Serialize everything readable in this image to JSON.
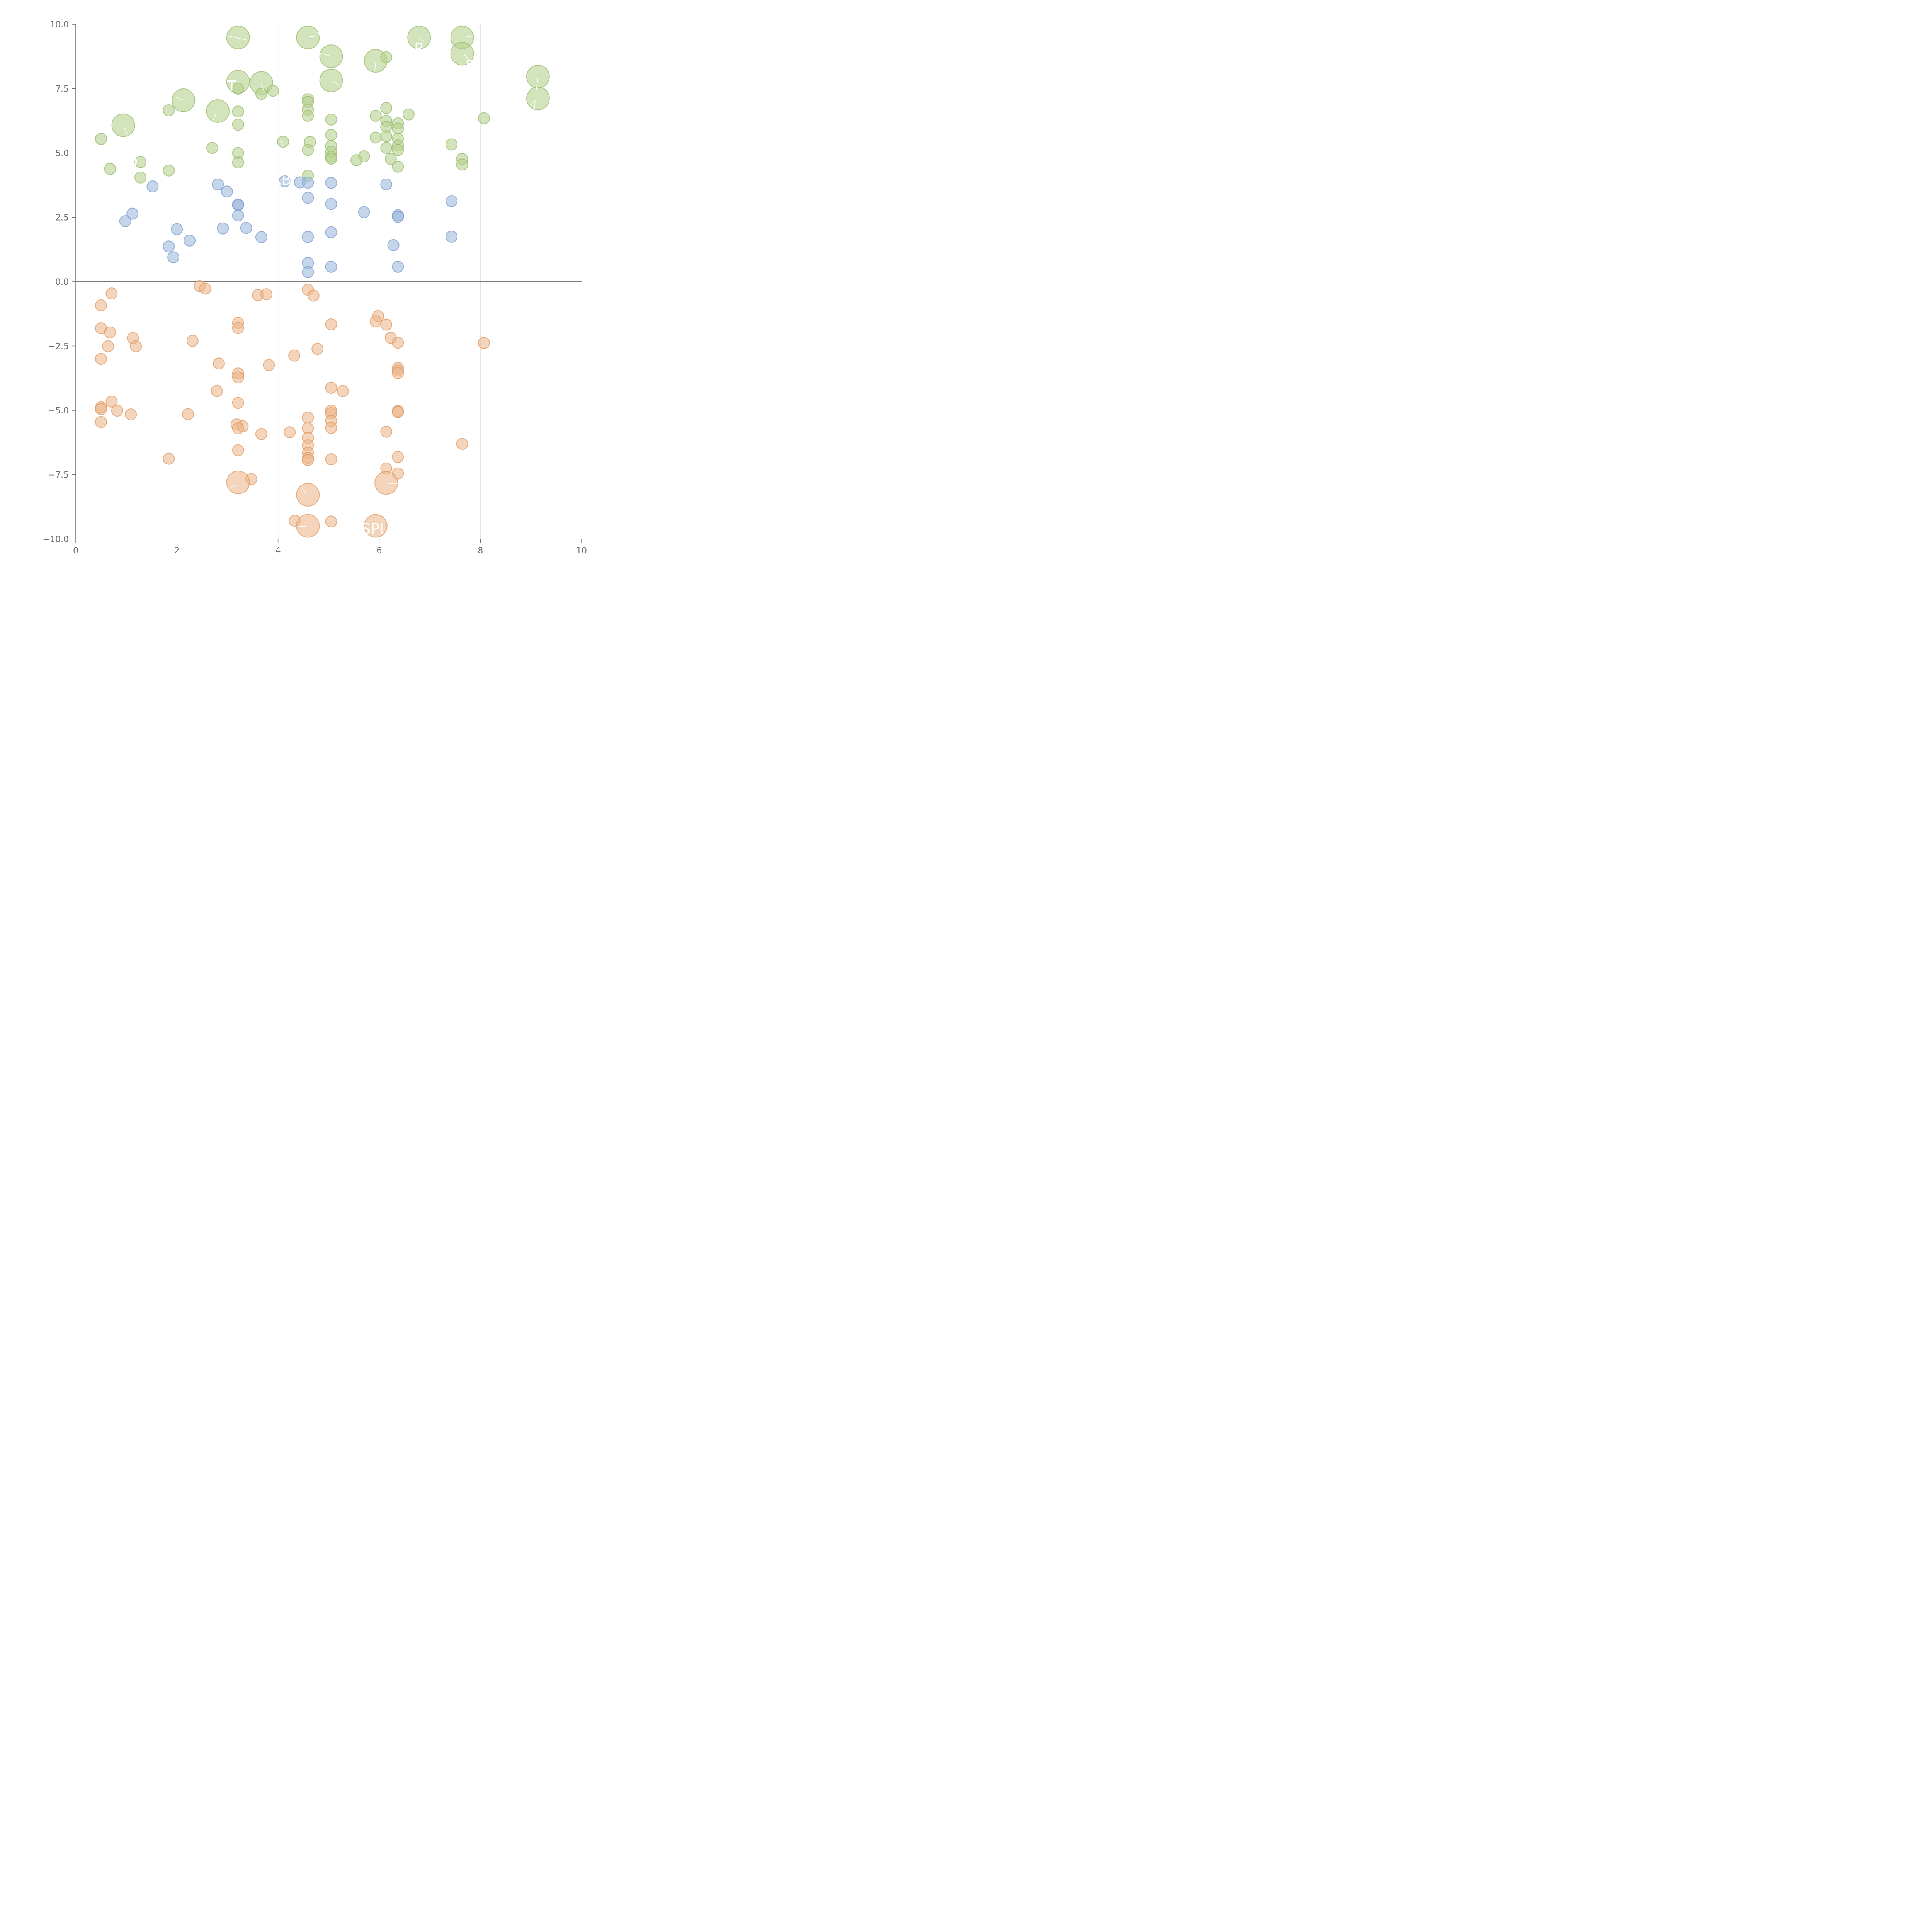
{
  "chart_data": {
    "type": "scatter",
    "title": "",
    "xlabel": "",
    "ylabel": "",
    "xlim": [
      0,
      10
    ],
    "ylim": [
      -10,
      10
    ],
    "x_ticks": [
      0,
      2,
      4,
      6,
      8,
      10
    ],
    "x_tick_labels": [
      "0",
      "2",
      "4",
      "6",
      "8",
      "10"
    ],
    "y_ticks": [
      10,
      7.5,
      5,
      2.5,
      0,
      -2.5,
      -5,
      -7.5,
      -10
    ],
    "y_tick_labels": [
      "10.0",
      "7.5",
      "5.0",
      "2.5",
      "0.0",
      "−2.5",
      "−5.0",
      "−7.5",
      "−10.0"
    ],
    "grid": "vertical",
    "zero_line": true,
    "legend": "none",
    "colors": {
      "green_fill": "#b5d08f",
      "green_stroke": "#95b96a",
      "blue_fill": "#9fb9dc",
      "blue_stroke": "#7a9acb",
      "orange_fill": "#ecb88c",
      "orange_stroke": "#dc9a64"
    },
    "series": [
      {
        "color": "green",
        "points": [
          [
            3.21,
            9.49,
            "L"
          ],
          [
            4.59,
            9.49,
            "L"
          ],
          [
            6.79,
            9.49,
            "L"
          ],
          [
            7.64,
            9.49,
            "L"
          ],
          [
            5.05,
            8.76,
            "L"
          ],
          [
            5.93,
            8.58,
            "L"
          ],
          [
            7.64,
            8.86,
            "L"
          ],
          [
            6.14,
            8.72,
            "S"
          ],
          [
            9.14,
            7.97,
            "L"
          ],
          [
            9.14,
            7.12,
            "L"
          ],
          [
            3.21,
            7.77,
            "L"
          ],
          [
            3.67,
            7.72,
            "L"
          ],
          [
            5.05,
            7.82,
            "L"
          ],
          [
            2.13,
            7.05,
            "L"
          ],
          [
            2.81,
            6.63,
            "L"
          ],
          [
            0.94,
            6.08,
            "L"
          ],
          [
            3.21,
            7.5,
            "S"
          ],
          [
            3.67,
            7.3,
            "S"
          ],
          [
            3.9,
            7.42,
            "S"
          ],
          [
            4.59,
            7.09,
            "S"
          ],
          [
            4.59,
            6.99,
            "S"
          ],
          [
            4.59,
            6.69,
            "S"
          ],
          [
            4.59,
            6.45,
            "S"
          ],
          [
            1.84,
            6.66,
            "S"
          ],
          [
            3.21,
            6.61,
            "S"
          ],
          [
            3.21,
            6.1,
            "S"
          ],
          [
            6.14,
            6.75,
            "S"
          ],
          [
            5.93,
            6.45,
            "S"
          ],
          [
            6.14,
            6.25,
            "S"
          ],
          [
            6.37,
            6.15,
            "S"
          ],
          [
            6.14,
            6.02,
            "S"
          ],
          [
            6.37,
            5.95,
            "S"
          ],
          [
            6.58,
            6.5,
            "S"
          ],
          [
            5.05,
            6.3,
            "S"
          ],
          [
            8.07,
            6.35,
            "S"
          ],
          [
            0.5,
            5.55,
            "S"
          ],
          [
            4.1,
            5.44,
            "S"
          ],
          [
            4.63,
            5.43,
            "S"
          ],
          [
            5.05,
            5.7,
            "S"
          ],
          [
            5.93,
            5.6,
            "S"
          ],
          [
            6.14,
            5.65,
            "S"
          ],
          [
            6.37,
            5.55,
            "S"
          ],
          [
            2.7,
            5.2,
            "S"
          ],
          [
            7.43,
            5.33,
            "S"
          ],
          [
            5.05,
            5.27,
            "S"
          ],
          [
            6.37,
            5.29,
            "S"
          ],
          [
            6.14,
            5.2,
            "S"
          ],
          [
            4.59,
            5.12,
            "S"
          ],
          [
            6.37,
            5.12,
            "S"
          ],
          [
            5.05,
            5.05,
            "S"
          ],
          [
            3.21,
            5.0,
            "S"
          ],
          [
            5.05,
            4.86,
            "S"
          ],
          [
            5.05,
            4.78,
            "S"
          ],
          [
            5.7,
            4.87,
            "S"
          ],
          [
            5.55,
            4.72,
            "S"
          ],
          [
            6.23,
            4.77,
            "S"
          ],
          [
            7.64,
            4.77,
            "S"
          ],
          [
            1.28,
            4.65,
            "S"
          ],
          [
            3.21,
            4.63,
            "S"
          ],
          [
            7.64,
            4.55,
            "S"
          ],
          [
            6.37,
            4.47,
            "S"
          ],
          [
            0.68,
            4.38,
            "S"
          ],
          [
            1.84,
            4.32,
            "S"
          ],
          [
            1.28,
            4.05,
            "S"
          ],
          [
            4.59,
            4.12,
            "S"
          ]
        ]
      },
      {
        "color": "blue",
        "points": [
          [
            1.52,
            3.7,
            "S"
          ],
          [
            2.81,
            3.78,
            "S"
          ],
          [
            2.99,
            3.5,
            "S"
          ],
          [
            4.13,
            3.9,
            "S"
          ],
          [
            4.43,
            3.86,
            "S"
          ],
          [
            4.59,
            3.85,
            "S"
          ],
          [
            5.05,
            3.84,
            "S"
          ],
          [
            6.14,
            3.78,
            "S"
          ],
          [
            4.59,
            3.26,
            "S"
          ],
          [
            7.43,
            3.13,
            "S"
          ],
          [
            3.21,
            3.0,
            "S"
          ],
          [
            3.21,
            2.97,
            "S"
          ],
          [
            5.05,
            3.02,
            "S"
          ],
          [
            1.12,
            2.64,
            "S"
          ],
          [
            0.98,
            2.35,
            "S"
          ],
          [
            3.21,
            2.57,
            "S"
          ],
          [
            5.7,
            2.7,
            "S"
          ],
          [
            6.37,
            2.58,
            "S"
          ],
          [
            6.37,
            2.52,
            "S"
          ],
          [
            2.0,
            2.04,
            "S"
          ],
          [
            2.91,
            2.07,
            "S"
          ],
          [
            3.37,
            2.09,
            "S"
          ],
          [
            2.25,
            1.6,
            "S"
          ],
          [
            3.67,
            1.73,
            "S"
          ],
          [
            4.59,
            1.74,
            "S"
          ],
          [
            5.05,
            1.92,
            "S"
          ],
          [
            7.43,
            1.75,
            "S"
          ],
          [
            1.84,
            1.37,
            "S"
          ],
          [
            6.28,
            1.42,
            "S"
          ],
          [
            1.93,
            0.95,
            "S"
          ],
          [
            4.59,
            0.73,
            "S"
          ],
          [
            5.05,
            0.58,
            "S"
          ],
          [
            6.37,
            0.58,
            "S"
          ],
          [
            4.59,
            0.37,
            "S"
          ]
        ]
      },
      {
        "color": "orange",
        "points": [
          [
            2.45,
            -0.17,
            "S"
          ],
          [
            2.56,
            -0.27,
            "S"
          ],
          [
            0.71,
            -0.46,
            "S"
          ],
          [
            3.6,
            -0.52,
            "S"
          ],
          [
            3.77,
            -0.49,
            "S"
          ],
          [
            4.59,
            -0.31,
            "S"
          ],
          [
            4.7,
            -0.54,
            "S"
          ],
          [
            0.5,
            -0.92,
            "S"
          ],
          [
            5.98,
            -1.34,
            "S"
          ],
          [
            5.93,
            -1.54,
            "S"
          ],
          [
            3.21,
            -1.6,
            "S"
          ],
          [
            3.21,
            -1.8,
            "S"
          ],
          [
            5.05,
            -1.66,
            "S"
          ],
          [
            6.14,
            -1.67,
            "S"
          ],
          [
            0.5,
            -1.81,
            "S"
          ],
          [
            0.68,
            -1.97,
            "S"
          ],
          [
            1.13,
            -2.19,
            "S"
          ],
          [
            6.23,
            -2.18,
            "S"
          ],
          [
            2.31,
            -2.3,
            "S"
          ],
          [
            6.37,
            -2.37,
            "S"
          ],
          [
            8.07,
            -2.38,
            "S"
          ],
          [
            0.64,
            -2.51,
            "S"
          ],
          [
            1.19,
            -2.51,
            "S"
          ],
          [
            4.78,
            -2.61,
            "S"
          ],
          [
            4.32,
            -2.87,
            "S"
          ],
          [
            0.5,
            -3.0,
            "S"
          ],
          [
            2.83,
            -3.18,
            "S"
          ],
          [
            3.82,
            -3.24,
            "S"
          ],
          [
            6.37,
            -3.35,
            "S"
          ],
          [
            6.37,
            -3.45,
            "S"
          ],
          [
            6.37,
            -3.55,
            "S"
          ],
          [
            3.21,
            -3.57,
            "S"
          ],
          [
            3.21,
            -3.72,
            "S"
          ],
          [
            5.05,
            -4.12,
            "S"
          ],
          [
            2.79,
            -4.25,
            "S"
          ],
          [
            5.28,
            -4.25,
            "S"
          ],
          [
            0.71,
            -4.66,
            "S"
          ],
          [
            3.21,
            -4.71,
            "S"
          ],
          [
            0.5,
            -4.88,
            "S"
          ],
          [
            0.5,
            -4.95,
            "S"
          ],
          [
            0.82,
            -5.01,
            "S"
          ],
          [
            5.05,
            -5.01,
            "S"
          ],
          [
            6.37,
            -5.02,
            "S"
          ],
          [
            6.37,
            -5.07,
            "S"
          ],
          [
            1.09,
            -5.16,
            "S"
          ],
          [
            2.22,
            -5.15,
            "S"
          ],
          [
            5.05,
            -5.11,
            "S"
          ],
          [
            4.59,
            -5.28,
            "S"
          ],
          [
            5.05,
            -5.41,
            "S"
          ],
          [
            0.5,
            -5.45,
            "S"
          ],
          [
            3.18,
            -5.55,
            "S"
          ],
          [
            3.3,
            -5.62,
            "S"
          ],
          [
            3.21,
            -5.7,
            "S"
          ],
          [
            4.59,
            -5.7,
            "S"
          ],
          [
            5.05,
            -5.68,
            "S"
          ],
          [
            4.23,
            -5.85,
            "S"
          ],
          [
            6.14,
            -5.83,
            "S"
          ],
          [
            3.67,
            -5.92,
            "S"
          ],
          [
            4.59,
            -6.07,
            "S"
          ],
          [
            4.59,
            -6.36,
            "S"
          ],
          [
            7.64,
            -6.3,
            "S"
          ],
          [
            3.21,
            -6.55,
            "S"
          ],
          [
            4.59,
            -6.65,
            "S"
          ],
          [
            4.59,
            -6.85,
            "S"
          ],
          [
            4.59,
            -6.93,
            "S"
          ],
          [
            6.37,
            -6.81,
            "S"
          ],
          [
            1.84,
            -6.88,
            "S"
          ],
          [
            5.05,
            -6.9,
            "S"
          ],
          [
            6.14,
            -7.26,
            "S"
          ],
          [
            6.37,
            -7.45,
            "S"
          ],
          [
            3.47,
            -7.67,
            "S"
          ],
          [
            3.21,
            -7.8,
            "L"
          ],
          [
            6.14,
            -7.82,
            "L"
          ],
          [
            4.59,
            -8.28,
            "L"
          ],
          [
            4.33,
            -9.29,
            "S"
          ],
          [
            5.05,
            -9.32,
            "S"
          ],
          [
            4.59,
            -9.49,
            "L"
          ],
          [
            5.93,
            -9.49,
            "L"
          ]
        ]
      }
    ],
    "annotations": [
      "SPI"
    ]
  }
}
